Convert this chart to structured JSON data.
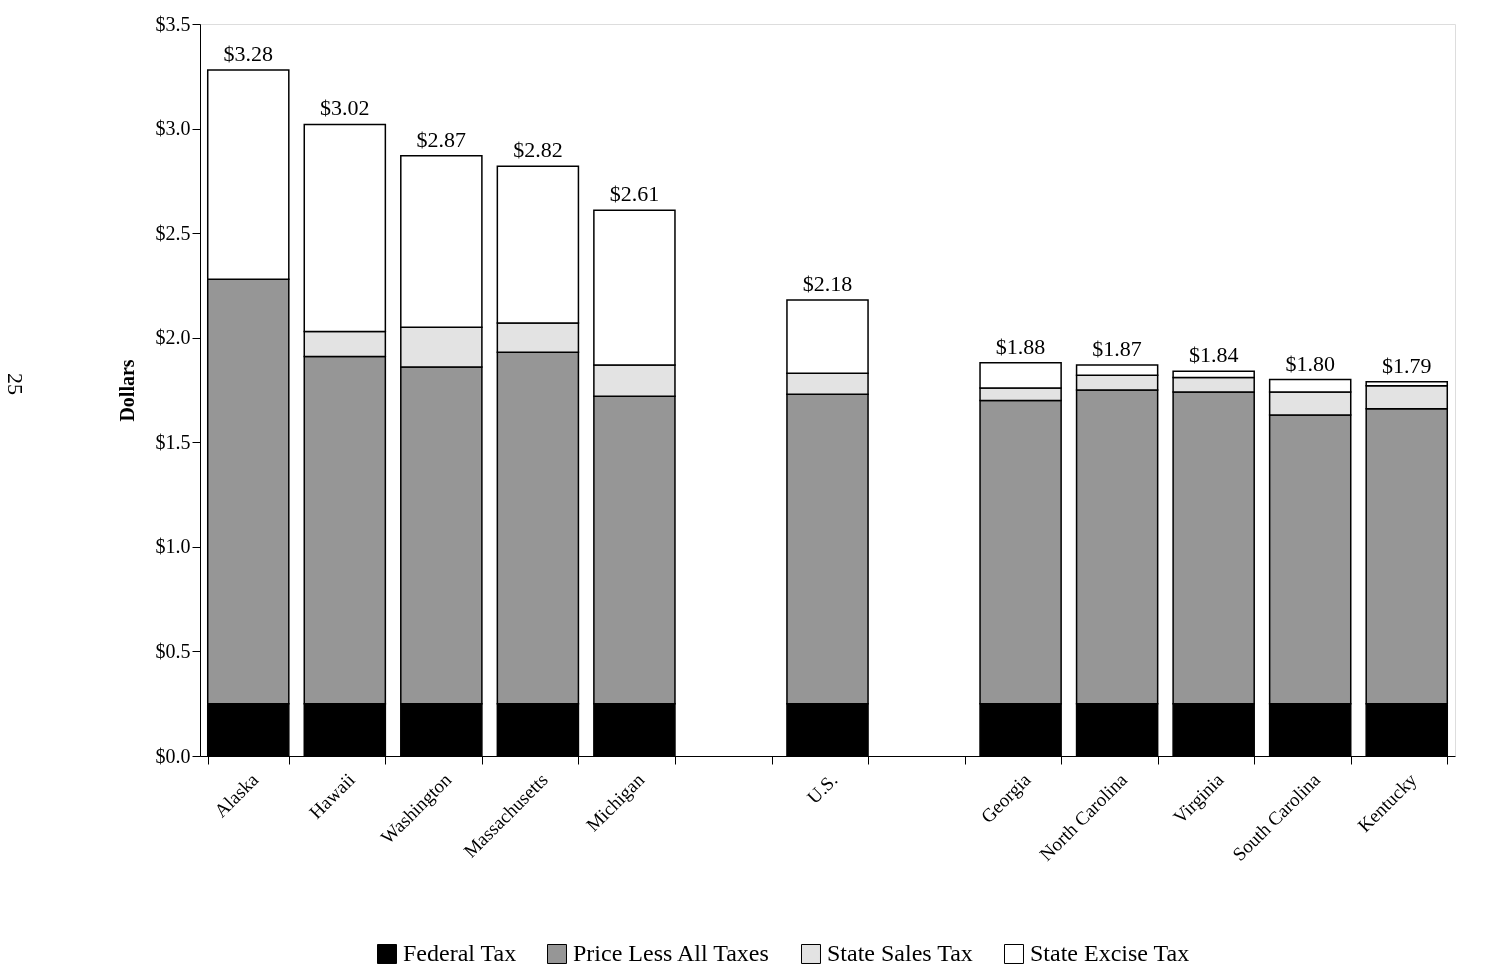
{
  "chart_data": {
    "type": "bar",
    "stacked": true,
    "ylabel": "Dollars",
    "categories": [
      "Alaska",
      "Hawaii",
      "Washington",
      "Massachusetts",
      "Michigan",
      null,
      "U.S.",
      null,
      "Georgia",
      "North Carolina",
      "Virginia",
      "South Carolina",
      "Kentucky"
    ],
    "series": [
      {
        "name": "Federal Tax",
        "color": "#000000",
        "values": [
          0.25,
          0.25,
          0.25,
          0.25,
          0.25,
          null,
          0.25,
          null,
          0.25,
          0.25,
          0.25,
          0.25,
          0.25
        ]
      },
      {
        "name": "Price Less All Taxes",
        "color": "#969696",
        "values": [
          2.03,
          1.66,
          1.61,
          1.68,
          1.47,
          null,
          1.48,
          null,
          1.45,
          1.5,
          1.49,
          1.38,
          1.41
        ]
      },
      {
        "name": "State Sales Tax",
        "color": "#e3e3e3",
        "values": [
          0,
          0.12,
          0.19,
          0.14,
          0.15,
          null,
          0.1,
          null,
          0.06,
          0.07,
          0.07,
          0.11,
          0.11
        ]
      },
      {
        "name": "State Excise Tax",
        "color": "#ffffff",
        "values": [
          1.0,
          0.99,
          0.82,
          0.75,
          0.74,
          null,
          0.35,
          null,
          0.12,
          0.05,
          0.03,
          0.06,
          0.02
        ]
      }
    ],
    "totals": [
      "$3.28",
      "$3.02",
      "$2.87",
      "$2.82",
      "$2.61",
      null,
      "$2.18",
      null,
      "$1.88",
      "$1.87",
      "$1.84",
      "$1.80",
      "$1.79"
    ],
    "ylim": [
      0,
      3.5
    ],
    "yticks": [
      {
        "value": 0,
        "label": "$0.0"
      },
      {
        "value": 0.5,
        "label": "$0.5"
      },
      {
        "value": 1,
        "label": "$1.0"
      },
      {
        "value": 1.5,
        "label": "$1.5"
      },
      {
        "value": 2,
        "label": "$2.0"
      },
      {
        "value": 2.5,
        "label": "$2.5"
      },
      {
        "value": 3,
        "label": "$3.0"
      },
      {
        "value": 3.5,
        "label": "$3.5"
      }
    ],
    "legend": "bottom",
    "grid": false,
    "annotations": [
      "25"
    ]
  }
}
